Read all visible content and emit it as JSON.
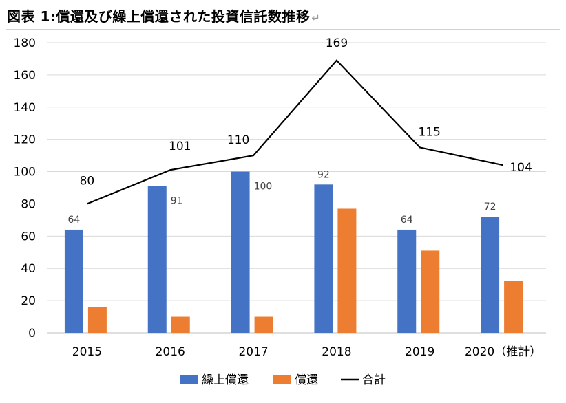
{
  "page_title": "図表 1:償還及び繰上償還された投資信託数推移",
  "return_mark": "↵",
  "chart_data": {
    "type": "bar",
    "title": "図表 1:償還及び繰上償還された投資信託数推移",
    "categories": [
      "2015",
      "2016",
      "2017",
      "2018",
      "2019",
      "2020（推計）"
    ],
    "series": [
      {
        "name": "繰上償還",
        "kind": "bar",
        "color": "#4472c4",
        "values": [
          64,
          91,
          100,
          92,
          64,
          72
        ]
      },
      {
        "name": "償還",
        "kind": "bar",
        "color": "#ed7d31",
        "values": [
          16,
          10,
          10,
          77,
          51,
          32
        ]
      },
      {
        "name": "合計",
        "kind": "line",
        "color": "#000000",
        "values": [
          80,
          101,
          110,
          169,
          115,
          104
        ]
      }
    ],
    "data_labels": {
      "繰上償還": [
        "64",
        "91",
        "100",
        "92",
        "64",
        "72"
      ],
      "合計": [
        "80",
        "101",
        "110",
        "169",
        "115",
        "104"
      ]
    },
    "ylim": [
      0,
      180
    ],
    "yticks": [
      "0",
      "20",
      "40",
      "60",
      "80",
      "100",
      "120",
      "140",
      "160",
      "180"
    ],
    "xlabel": "",
    "ylabel": "",
    "grid": true,
    "legend_position": "bottom"
  }
}
